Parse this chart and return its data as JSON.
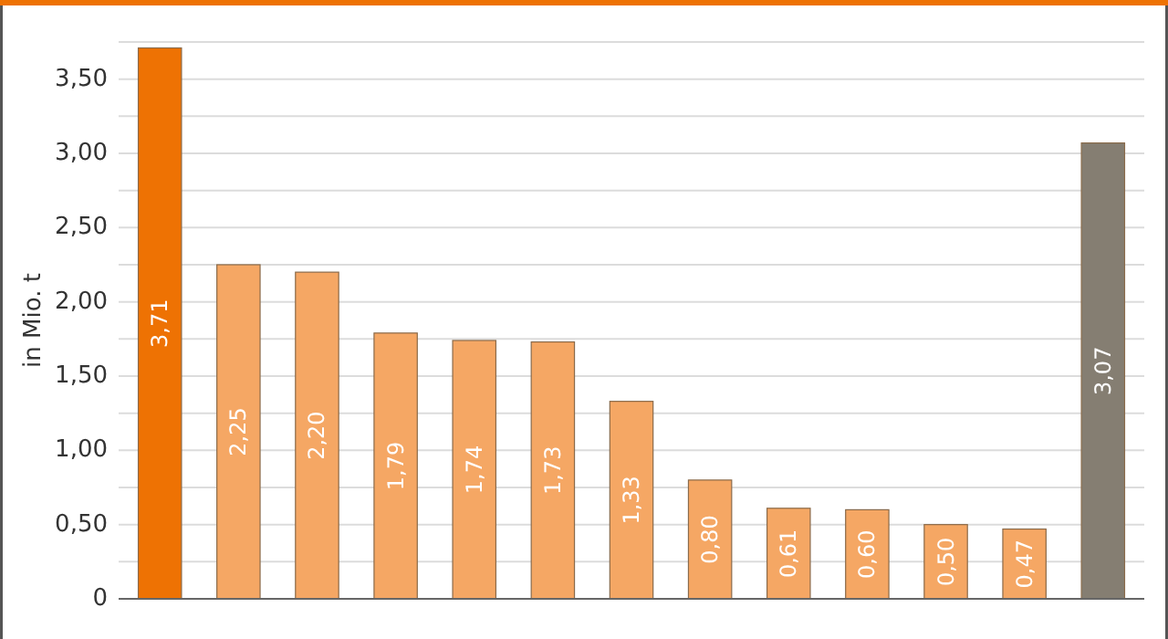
{
  "chart_data": {
    "type": "bar",
    "ylabel": "in Mio. t",
    "categories": [
      null,
      null,
      null,
      null,
      null,
      null,
      null,
      null,
      null,
      null,
      null,
      null,
      null
    ],
    "values": [
      3.71,
      2.25,
      2.2,
      1.79,
      1.74,
      1.73,
      1.33,
      0.8,
      0.61,
      0.6,
      0.5,
      0.47,
      3.07
    ],
    "value_labels": [
      "3,71",
      "2,25",
      "2,20",
      "1,79",
      "1,74",
      "1,73",
      "1,33",
      "0,80",
      "0,61",
      "0,60",
      "0,50",
      "0,47",
      "3,07"
    ],
    "colors": [
      "#ee7203",
      "#f5a764",
      "#f5a764",
      "#f5a764",
      "#f5a764",
      "#f5a764",
      "#f5a764",
      "#f5a764",
      "#f5a764",
      "#f5a764",
      "#f5a764",
      "#f5a764",
      "#857e72"
    ],
    "ylim": [
      0,
      3.75
    ],
    "yticks": [
      {
        "value": 0,
        "label": "0"
      },
      {
        "value": 0.25,
        "label": null
      },
      {
        "value": 0.5,
        "label": "0,50"
      },
      {
        "value": 0.75,
        "label": null
      },
      {
        "value": 1,
        "label": "1,00"
      },
      {
        "value": 1.25,
        "label": null
      },
      {
        "value": 1.5,
        "label": "1,50"
      },
      {
        "value": 1.75,
        "label": null
      },
      {
        "value": 2,
        "label": "2,00"
      },
      {
        "value": 2.25,
        "label": null
      },
      {
        "value": 2.5,
        "label": "2,50"
      },
      {
        "value": 2.75,
        "label": null
      },
      {
        "value": 3,
        "label": "3,00"
      },
      {
        "value": 3.25,
        "label": null
      },
      {
        "value": 3.5,
        "label": "3,50"
      },
      {
        "value": 3.75,
        "label": null
      }
    ],
    "grid": "y"
  }
}
